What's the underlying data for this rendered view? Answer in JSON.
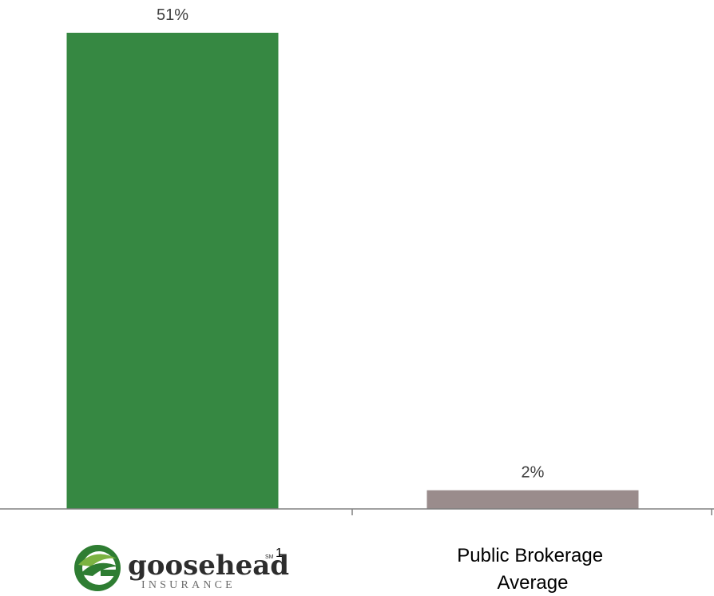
{
  "chart_data": {
    "type": "bar",
    "categories": [
      "Goosehead Insurance",
      "Public Brokerage Average"
    ],
    "values": [
      51,
      2
    ],
    "value_labels": [
      "51%",
      "2%"
    ],
    "colors": [
      "#368842",
      "#9a8c8c"
    ],
    "ylim": [
      0,
      51
    ],
    "grid": false,
    "title": "",
    "xlabel": "",
    "ylabel": ""
  },
  "logo": {
    "wordmark": "goosehead",
    "sub": "INSURANCE",
    "service_mark": "SM",
    "footnote": "1",
    "colors": {
      "dark_green": "#2e7d32",
      "light_green": "#7cb342",
      "text": "#2d2d2d"
    }
  },
  "axis": {
    "color": "#808080"
  },
  "category_label_lines": [
    [],
    [
      "Public Brokerage",
      "Average"
    ]
  ]
}
